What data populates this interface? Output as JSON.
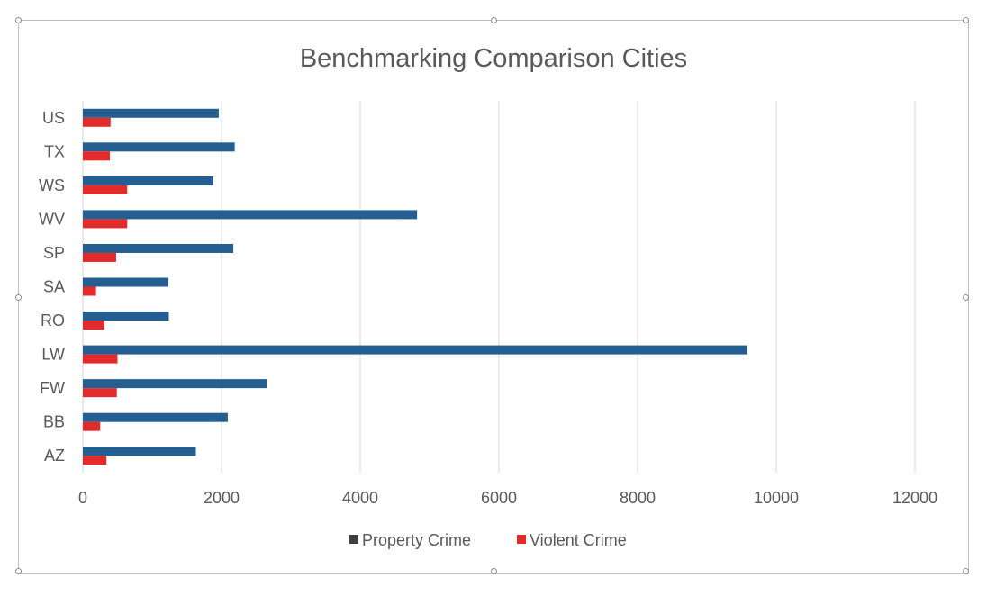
{
  "chart_data": {
    "type": "bar",
    "orientation": "horizontal",
    "title": "Benchmarking Comparison Cities",
    "categories": [
      "AZ",
      "BB",
      "FW",
      "LW",
      "RO",
      "SA",
      "SP",
      "WV",
      "WS",
      "TX",
      "US"
    ],
    "series": [
      {
        "name": "Property Crime",
        "color": "#255e91",
        "values": [
          1630,
          2090,
          2650,
          9580,
          1240,
          1230,
          2170,
          4820,
          1880,
          2190,
          1960
        ]
      },
      {
        "name": "Violent Crime",
        "color": "#e32b2b",
        "values": [
          340,
          250,
          490,
          500,
          310,
          190,
          480,
          640,
          640,
          390,
          400
        ]
      }
    ],
    "xlim": [
      0,
      12000
    ],
    "xticks": [
      "0",
      "2000",
      "4000",
      "6000",
      "8000",
      "10000",
      "12000"
    ],
    "xlabel": "",
    "ylabel": "",
    "grid": "vertical",
    "legend_position": "bottom"
  }
}
